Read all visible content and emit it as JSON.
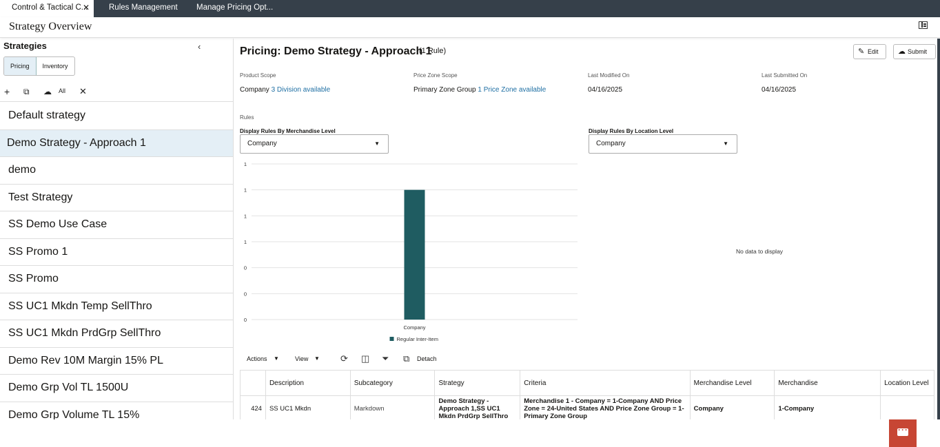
{
  "tabs": [
    {
      "label": "Control & Tactical C...",
      "active": true,
      "closable": true
    },
    {
      "label": "Rules Management"
    },
    {
      "label": "Manage Pricing Opt..."
    }
  ],
  "header": {
    "title": "Strategy Overview"
  },
  "sidebar": {
    "title": "Strategies",
    "segments": [
      "Pricing",
      "Inventory"
    ],
    "all_label": "All",
    "items": [
      "Default strategy",
      "Demo Strategy - Approach 1",
      "demo",
      "Test Strategy",
      "SS Demo Use Case",
      "SS Promo 1",
      "SS Promo",
      "SS UC1 Mkdn Temp SellThro",
      "SS UC1 Mkdn PrdGrp SellThro",
      "Demo Rev 10M Margin 15% PL",
      "Demo Grp Vol TL 1500U",
      "Demo Grp Volume TL 15%"
    ],
    "selected_index": 1
  },
  "main": {
    "title": "Pricing: Demo Strategy - Approach 1",
    "rule_count": "(1 Rule)",
    "edit_label": "Edit",
    "submit_label": "Submit",
    "product_scope_label": "Product Scope",
    "product_scope_value": "Company",
    "product_scope_link": "3 Division available",
    "price_zone_label": "Price Zone Scope",
    "price_zone_value": "Primary Zone Group",
    "price_zone_link": "1 Price Zone available",
    "last_modified_label": "Last Modified On",
    "last_modified_value": "04/16/2025",
    "last_submitted_label": "Last Submitted On",
    "last_submitted_value": "04/16/2025",
    "rules_label": "Rules",
    "merch_dd_label": "Display Rules By Merchandise Level",
    "merch_dd_value": "Company",
    "loc_dd_label": "Display Rules By Location Level",
    "loc_dd_value": "Company",
    "no_data": "No data to display"
  },
  "chart_data": {
    "type": "bar",
    "categories": [
      "Company"
    ],
    "series": [
      {
        "name": "Regular Inter-Item",
        "values": [
          1
        ],
        "color": "#1f5c61"
      }
    ],
    "ytick_labels": [
      "1",
      "1",
      "1",
      "1",
      "0",
      "0",
      "0"
    ],
    "ylim": [
      0,
      1.2
    ],
    "grid": true,
    "legend": "bottom"
  },
  "toolbar": {
    "actions_label": "Actions",
    "view_label": "View",
    "detach_label": "Detach"
  },
  "table": {
    "columns": [
      "",
      "Description",
      "Subcategory",
      "Strategy",
      "Criteria",
      "Merchandise Level",
      "Merchandise",
      "Location Level"
    ],
    "rows": [
      [
        "424",
        "SS UC1 Mkdn",
        "Markdown",
        "Demo Strategy - Approach 1,SS UC1 Mkdn PrdGrp SellThro",
        "Merchandise 1 - Company = 1-Company AND Price Zone = 24-United States AND Price Zone Group = 1-Primary Zone Group",
        "Company",
        "1-Company",
        ""
      ]
    ]
  }
}
